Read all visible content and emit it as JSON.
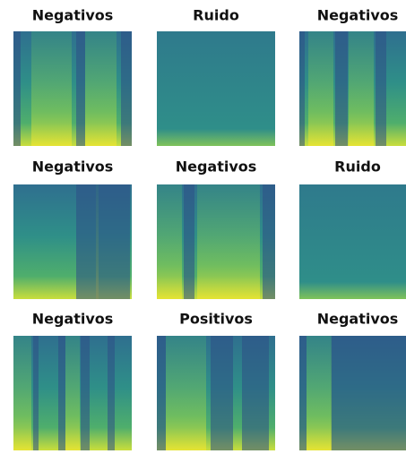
{
  "panels": [
    {
      "title": "Negativos"
    },
    {
      "title": "Ruido"
    },
    {
      "title": "Negativos"
    },
    {
      "title": "Negativos"
    },
    {
      "title": "Negativos"
    },
    {
      "title": "Ruido"
    },
    {
      "title": "Negativos"
    },
    {
      "title": "Positivos"
    },
    {
      "title": "Negativos"
    }
  ]
}
